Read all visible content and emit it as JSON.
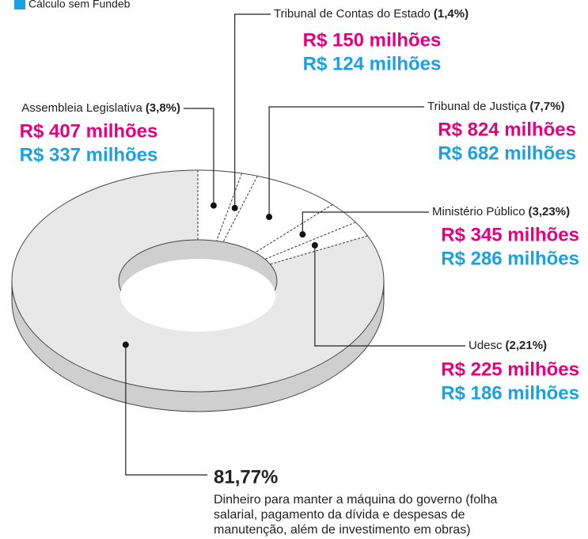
{
  "chart_data": {
    "type": "donut",
    "legend": [
      {
        "name": "Cálculo sem Fundeb",
        "color": "#1ba1e2"
      }
    ],
    "categories": [
      "Assembleia Legislativa",
      "Tribunal de Contas do Estado",
      "Tribunal de Justiça",
      "Ministério Público",
      "Udesc",
      null
    ],
    "values": [
      3.8,
      1.4,
      7.7,
      3.23,
      2.21,
      81.77
    ],
    "value_labels": [
      "(3,8%)",
      "(1,4%)",
      "(7,7%)",
      "(3,23%)",
      "(2,21%)",
      "81,77%"
    ],
    "amounts_com_fundeb": [
      "R$ 407 milhões",
      "R$ 150 milhões",
      "R$ 824 milhões",
      "R$ 345 milhões",
      "R$ 225 milhões",
      null
    ],
    "amounts_sem_fundeb": [
      "R$ 337 milhões",
      "R$ 124 milhões",
      "R$ 682 milhões",
      "R$ 286 milhões",
      "R$ 186 milhões",
      null
    ],
    "colors": [
      "#ffffff",
      "#ffffff",
      "#ffffff",
      "#ffffff",
      "#ffffff",
      "#e8e8e8"
    ],
    "amount_colors": [
      "#e5007e",
      "#1ba1e2"
    ],
    "description": [
      "Dinheiro para manter a máquina do governo (folha",
      "salarial, pagamento da dívida e despesas de",
      "manutenção, além de investimento em obras)"
    ]
  }
}
